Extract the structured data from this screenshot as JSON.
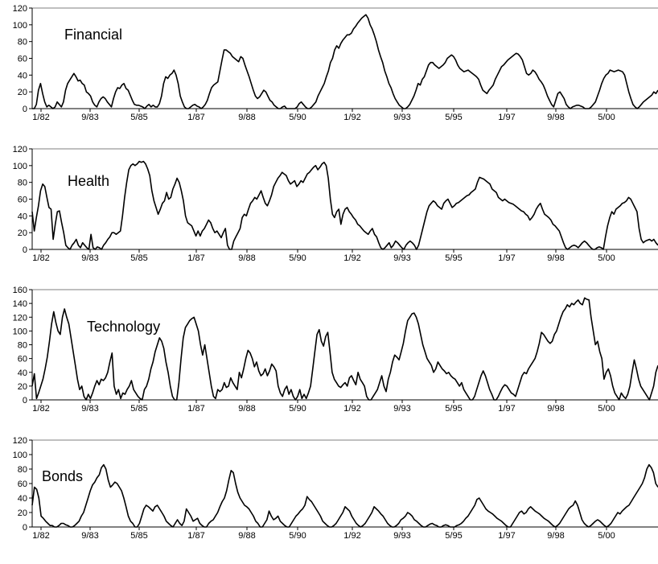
{
  "chart_data": [
    {
      "type": "line",
      "label": "Financial",
      "ylim": [
        0,
        120
      ],
      "yticks": [
        0,
        20,
        40,
        60,
        80,
        100,
        120
      ],
      "x_ticks": [
        "1/82",
        "9/83",
        "5/85",
        "1/87",
        "9/88",
        "5/90",
        "1/92",
        "9/93",
        "5/95",
        "1/97",
        "9/98",
        "5/00"
      ],
      "values": [
        0,
        0,
        5,
        22,
        30,
        18,
        8,
        2,
        4,
        2,
        0,
        2,
        8,
        5,
        2,
        8,
        22,
        30,
        34,
        38,
        42,
        38,
        33,
        34,
        30,
        28,
        20,
        18,
        15,
        8,
        4,
        2,
        8,
        12,
        14,
        12,
        8,
        5,
        2,
        12,
        20,
        25,
        24,
        28,
        30,
        24,
        22,
        16,
        10,
        5,
        4,
        4,
        3,
        2,
        0,
        3,
        5,
        2,
        4,
        2,
        2,
        6,
        15,
        30,
        38,
        36,
        40,
        42,
        46,
        40,
        30,
        15,
        8,
        2,
        0,
        0,
        2,
        4,
        5,
        3,
        2,
        0,
        2,
        5,
        10,
        18,
        25,
        28,
        30,
        32,
        45,
        58,
        70,
        70,
        68,
        66,
        62,
        60,
        58,
        56,
        62,
        60,
        52,
        45,
        38,
        30,
        22,
        15,
        12,
        14,
        18,
        22,
        20,
        15,
        10,
        8,
        4,
        2,
        0,
        0,
        2,
        3,
        0,
        0,
        0,
        0,
        0,
        2,
        6,
        8,
        5,
        2,
        0,
        0,
        2,
        5,
        8,
        15,
        20,
        25,
        30,
        38,
        45,
        55,
        60,
        70,
        75,
        72,
        78,
        82,
        85,
        88,
        88,
        90,
        95,
        98,
        102,
        105,
        108,
        110,
        112,
        108,
        100,
        95,
        88,
        80,
        70,
        62,
        55,
        45,
        38,
        30,
        25,
        18,
        12,
        8,
        4,
        2,
        0,
        0,
        2,
        5,
        10,
        15,
        22,
        30,
        28,
        35,
        38,
        45,
        52,
        55,
        55,
        52,
        50,
        48,
        50,
        52,
        55,
        60,
        62,
        64,
        62,
        58,
        52,
        48,
        46,
        44,
        45,
        46,
        44,
        42,
        40,
        38,
        35,
        28,
        22,
        20,
        18,
        22,
        25,
        28,
        35,
        40,
        45,
        50,
        52,
        55,
        58,
        60,
        62,
        64,
        66,
        65,
        62,
        58,
        50,
        42,
        40,
        42,
        46,
        44,
        40,
        35,
        32,
        28,
        22,
        15,
        10,
        5,
        2,
        10,
        18,
        20,
        16,
        12,
        5,
        2,
        0,
        2,
        3,
        4,
        4,
        3,
        2,
        0,
        0,
        0,
        2,
        5,
        8,
        15,
        22,
        30,
        36,
        40,
        42,
        46,
        45,
        44,
        45,
        46,
        45,
        44,
        40,
        30,
        20,
        12,
        5,
        2,
        0,
        2,
        5,
        8,
        10,
        12,
        14,
        16,
        20,
        18,
        22
      ]
    },
    {
      "type": "line",
      "label": "Health",
      "ylim": [
        0,
        120
      ],
      "yticks": [
        0,
        20,
        40,
        60,
        80,
        100,
        120
      ],
      "x_ticks": [
        "1/82",
        "9/83",
        "5/85",
        "1/87",
        "9/88",
        "5/90",
        "1/92",
        "9/93",
        "5/95",
        "1/97",
        "9/98",
        "5/00"
      ],
      "values": [
        45,
        22,
        38,
        52,
        70,
        78,
        75,
        62,
        50,
        48,
        12,
        30,
        45,
        46,
        32,
        20,
        5,
        2,
        0,
        5,
        8,
        12,
        5,
        2,
        8,
        5,
        2,
        0,
        18,
        2,
        0,
        3,
        2,
        0,
        5,
        8,
        12,
        15,
        20,
        20,
        18,
        20,
        22,
        40,
        62,
        80,
        95,
        100,
        102,
        100,
        102,
        105,
        104,
        105,
        102,
        96,
        88,
        70,
        58,
        50,
        42,
        48,
        55,
        58,
        68,
        60,
        62,
        72,
        78,
        85,
        80,
        70,
        58,
        40,
        32,
        30,
        28,
        22,
        16,
        22,
        16,
        22,
        25,
        30,
        35,
        32,
        25,
        20,
        22,
        18,
        14,
        20,
        25,
        5,
        0,
        0,
        10,
        15,
        20,
        25,
        38,
        42,
        40,
        48,
        55,
        58,
        62,
        60,
        65,
        70,
        62,
        55,
        52,
        58,
        65,
        75,
        80,
        85,
        88,
        92,
        90,
        88,
        82,
        78,
        80,
        82,
        75,
        78,
        82,
        80,
        85,
        90,
        92,
        95,
        98,
        100,
        95,
        98,
        102,
        104,
        100,
        85,
        60,
        42,
        38,
        45,
        48,
        30,
        42,
        48,
        50,
        45,
        42,
        38,
        35,
        30,
        28,
        25,
        22,
        20,
        18,
        22,
        25,
        18,
        15,
        8,
        2,
        0,
        2,
        5,
        8,
        2,
        5,
        10,
        8,
        5,
        2,
        0,
        5,
        8,
        10,
        8,
        5,
        0,
        5,
        15,
        25,
        35,
        45,
        52,
        55,
        58,
        56,
        52,
        50,
        48,
        55,
        58,
        60,
        55,
        50,
        52,
        55,
        56,
        58,
        60,
        62,
        64,
        65,
        68,
        70,
        72,
        80,
        86,
        85,
        84,
        82,
        80,
        78,
        72,
        70,
        68,
        62,
        60,
        58,
        60,
        58,
        56,
        55,
        54,
        52,
        50,
        48,
        46,
        45,
        42,
        40,
        35,
        38,
        42,
        48,
        52,
        55,
        48,
        42,
        40,
        38,
        35,
        30,
        28,
        25,
        22,
        15,
        8,
        2,
        0,
        2,
        4,
        5,
        4,
        2,
        5,
        8,
        10,
        8,
        5,
        2,
        0,
        0,
        2,
        3,
        2,
        0,
        15,
        28,
        38,
        45,
        42,
        48,
        50,
        52,
        55,
        56,
        58,
        62,
        60,
        55,
        50,
        45,
        25,
        12,
        8,
        10,
        11,
        12,
        10,
        12,
        8,
        5
      ]
    },
    {
      "type": "line",
      "label": "Technology",
      "ylim": [
        0,
        160
      ],
      "yticks": [
        0,
        20,
        40,
        60,
        80,
        100,
        120,
        140,
        160
      ],
      "x_ticks": [
        "1/82",
        "9/83",
        "5/85",
        "1/87",
        "9/88",
        "5/90",
        "1/92",
        "9/93",
        "5/95",
        "1/97",
        "9/98",
        "5/00"
      ],
      "values": [
        20,
        38,
        2,
        10,
        20,
        30,
        45,
        62,
        85,
        110,
        128,
        112,
        100,
        95,
        120,
        132,
        120,
        110,
        90,
        70,
        50,
        30,
        15,
        20,
        5,
        0,
        8,
        2,
        10,
        20,
        28,
        22,
        30,
        28,
        32,
        40,
        55,
        68,
        20,
        8,
        15,
        2,
        10,
        8,
        15,
        20,
        28,
        15,
        10,
        5,
        2,
        0,
        15,
        20,
        30,
        45,
        55,
        70,
        80,
        90,
        85,
        75,
        55,
        40,
        20,
        5,
        0,
        0,
        25,
        60,
        90,
        105,
        110,
        115,
        118,
        120,
        110,
        100,
        80,
        65,
        80,
        60,
        40,
        20,
        5,
        2,
        15,
        12,
        15,
        25,
        18,
        20,
        32,
        25,
        20,
        15,
        40,
        32,
        45,
        60,
        72,
        68,
        60,
        48,
        55,
        42,
        35,
        38,
        45,
        35,
        42,
        52,
        48,
        42,
        20,
        10,
        5,
        15,
        20,
        8,
        15,
        5,
        0,
        5,
        15,
        2,
        8,
        2,
        10,
        20,
        45,
        70,
        95,
        102,
        85,
        78,
        92,
        98,
        70,
        40,
        30,
        25,
        20,
        18,
        22,
        25,
        20,
        32,
        35,
        28,
        22,
        40,
        30,
        25,
        20,
        5,
        0,
        0,
        5,
        10,
        15,
        25,
        35,
        20,
        12,
        30,
        40,
        55,
        65,
        62,
        58,
        70,
        82,
        100,
        115,
        120,
        125,
        126,
        120,
        110,
        95,
        80,
        70,
        60,
        55,
        50,
        40,
        45,
        55,
        50,
        45,
        42,
        38,
        40,
        35,
        32,
        30,
        25,
        20,
        25,
        15,
        10,
        5,
        0,
        0,
        5,
        15,
        25,
        35,
        42,
        35,
        25,
        15,
        8,
        0,
        0,
        5,
        12,
        18,
        22,
        20,
        15,
        10,
        8,
        5,
        15,
        25,
        35,
        40,
        38,
        45,
        50,
        55,
        60,
        70,
        82,
        98,
        95,
        90,
        85,
        82,
        85,
        95,
        100,
        110,
        120,
        128,
        132,
        138,
        135,
        140,
        138,
        142,
        145,
        140,
        138,
        148,
        146,
        145,
        120,
        100,
        80,
        85,
        70,
        60,
        30,
        40,
        45,
        35,
        20,
        10,
        5,
        0,
        10,
        5,
        2,
        8,
        20,
        40,
        58,
        45,
        30,
        20,
        15,
        10,
        5,
        0,
        10,
        20,
        40,
        50
      ]
    },
    {
      "type": "line",
      "label": "Bonds",
      "ylim": [
        0,
        120
      ],
      "yticks": [
        0,
        20,
        40,
        60,
        80,
        100,
        120
      ],
      "x_ticks": [
        "1/82",
        "9/83",
        "5/85",
        "1/87",
        "9/88",
        "5/90",
        "1/92",
        "9/93",
        "5/95",
        "1/97",
        "9/98",
        "5/00"
      ],
      "values": [
        30,
        55,
        52,
        40,
        15,
        12,
        8,
        5,
        2,
        2,
        0,
        0,
        2,
        5,
        5,
        3,
        2,
        0,
        0,
        2,
        5,
        8,
        15,
        20,
        30,
        40,
        50,
        58,
        62,
        68,
        72,
        82,
        86,
        80,
        65,
        55,
        58,
        62,
        60,
        55,
        50,
        40,
        28,
        15,
        8,
        5,
        0,
        0,
        5,
        15,
        25,
        30,
        28,
        25,
        22,
        28,
        30,
        25,
        20,
        15,
        8,
        5,
        2,
        0,
        5,
        10,
        5,
        2,
        8,
        25,
        20,
        15,
        8,
        10,
        12,
        5,
        2,
        0,
        0,
        5,
        8,
        10,
        15,
        20,
        28,
        35,
        40,
        50,
        65,
        78,
        75,
        60,
        48,
        40,
        35,
        30,
        28,
        25,
        20,
        15,
        8,
        5,
        0,
        0,
        5,
        10,
        22,
        15,
        10,
        12,
        15,
        8,
        5,
        2,
        0,
        0,
        5,
        10,
        15,
        18,
        22,
        25,
        30,
        42,
        38,
        35,
        30,
        25,
        20,
        15,
        8,
        5,
        2,
        0,
        0,
        2,
        5,
        10,
        15,
        20,
        28,
        25,
        22,
        15,
        10,
        5,
        2,
        0,
        2,
        5,
        10,
        15,
        20,
        28,
        25,
        22,
        18,
        15,
        10,
        5,
        2,
        0,
        0,
        2,
        5,
        10,
        12,
        15,
        20,
        18,
        15,
        10,
        8,
        5,
        2,
        0,
        0,
        2,
        4,
        5,
        3,
        2,
        0,
        0,
        2,
        3,
        2,
        0,
        0,
        0,
        2,
        3,
        5,
        8,
        12,
        15,
        20,
        25,
        30,
        38,
        40,
        35,
        30,
        25,
        22,
        20,
        18,
        15,
        12,
        10,
        8,
        5,
        2,
        0,
        0,
        5,
        10,
        15,
        20,
        22,
        18,
        20,
        25,
        28,
        25,
        22,
        20,
        18,
        15,
        12,
        10,
        8,
        5,
        2,
        0,
        2,
        5,
        10,
        15,
        20,
        25,
        28,
        30,
        36,
        30,
        20,
        10,
        5,
        2,
        0,
        2,
        5,
        8,
        10,
        8,
        5,
        2,
        0,
        2,
        5,
        10,
        15,
        20,
        18,
        22,
        25,
        28,
        30,
        35,
        40,
        45,
        50,
        55,
        60,
        68,
        80,
        86,
        82,
        75,
        60,
        55
      ]
    }
  ]
}
